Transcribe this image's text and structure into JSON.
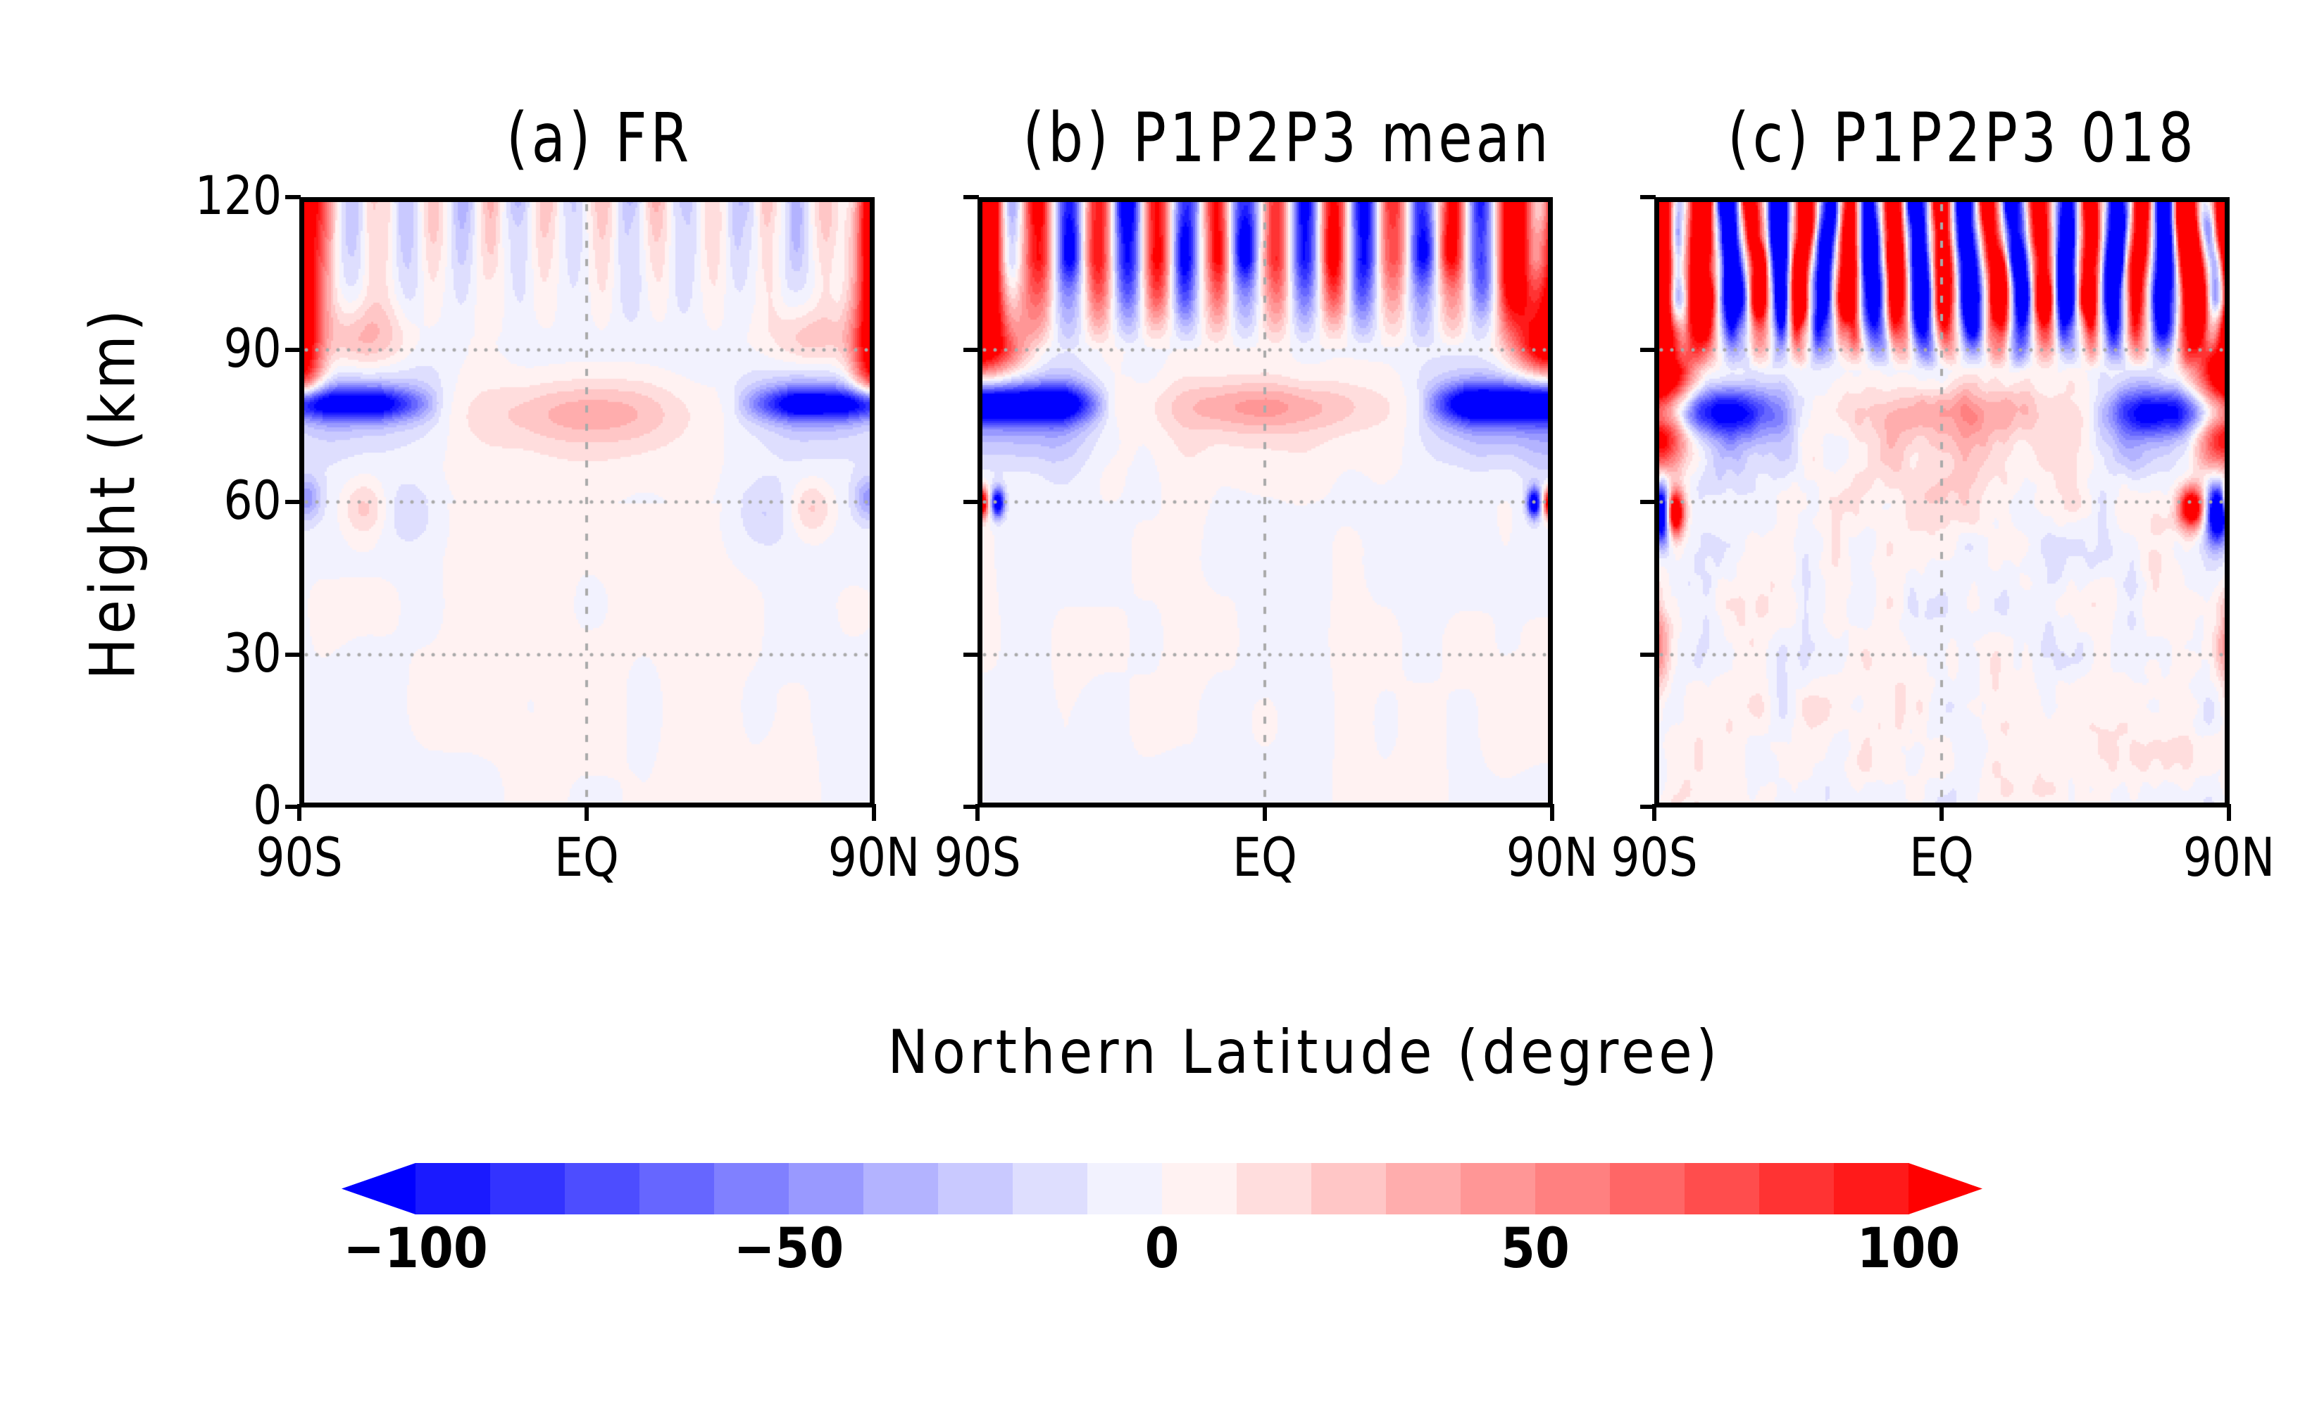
{
  "chart_data": [
    {
      "type": "heatmap",
      "panel_id": "a",
      "title": "(a) FR",
      "xlabel": "Northern Latitude (degree)",
      "ylabel": "Height (km)",
      "xlim": [
        -90,
        90
      ],
      "ylim": [
        0,
        120
      ],
      "xticks": [
        {
          "value": -90,
          "label": "90S"
        },
        {
          "value": 0,
          "label": "EQ"
        },
        {
          "value": 90,
          "label": "90N"
        }
      ],
      "yticks": [
        {
          "value": 0,
          "label": "0"
        },
        {
          "value": 30,
          "label": "30"
        },
        {
          "value": 60,
          "label": "60"
        },
        {
          "value": 90,
          "label": "90"
        },
        {
          "value": 120,
          "label": "120"
        }
      ],
      "grid": {
        "dotted_lines_at_height": [
          30,
          60,
          90
        ],
        "dotted_line_at_lat": [
          0
        ]
      },
      "features": [
        {
          "description": "strong positive (>100) near both poles above ~90 km",
          "value": ">100"
        },
        {
          "description": "strong negative band at ~80 km poleward of ~45 deg",
          "value": "-80 to -100"
        },
        {
          "description": "weak positive lens centered on equator at ~78 km",
          "value": "20 to 35"
        },
        {
          "description": "weak alternating vertical cells above 90 km",
          "value": "-30 to 30"
        },
        {
          "description": "near-zero field below 60 km",
          "value": "-10 to 10"
        }
      ]
    },
    {
      "type": "heatmap",
      "panel_id": "b",
      "title": "(b) P1P2P3 mean",
      "xlabel": "Northern Latitude (degree)",
      "ylabel": "Height (km)",
      "xlim": [
        -90,
        90
      ],
      "ylim": [
        0,
        120
      ],
      "xticks": [
        {
          "value": -90,
          "label": "90S"
        },
        {
          "value": 0,
          "label": "EQ"
        },
        {
          "value": 90,
          "label": "90N"
        }
      ],
      "yticks": [
        {
          "value": 0,
          "label": ""
        },
        {
          "value": 30,
          "label": ""
        },
        {
          "value": 60,
          "label": ""
        },
        {
          "value": 90,
          "label": ""
        },
        {
          "value": 120,
          "label": ""
        }
      ],
      "grid": {
        "dotted_lines_at_height": [
          30,
          60,
          90
        ],
        "dotted_line_at_lat": [
          0
        ]
      },
      "features": [
        {
          "description": "strong positive (>100) near both poles above ~90 km",
          "value": ">100"
        },
        {
          "description": "strong alternating vertical plumes above 95 km",
          "value": "-100 to 100"
        },
        {
          "description": "strong negative band at ~80 km poleward of ~45 deg",
          "value": "-80 to -100"
        },
        {
          "description": "weak positive lens centered on equator at ~78 km",
          "value": "20 to 35"
        },
        {
          "description": "small dipoles at ~60 km near both poles",
          "value": "-100 / 100"
        },
        {
          "description": "near-zero field below 55 km",
          "value": "-10 to 10"
        }
      ]
    },
    {
      "type": "heatmap",
      "panel_id": "c",
      "title": "(c) P1P2P3 018",
      "xlabel": "Northern Latitude (degree)",
      "ylabel": "Height (km)",
      "xlim": [
        -90,
        90
      ],
      "ylim": [
        0,
        120
      ],
      "xticks": [
        {
          "value": -90,
          "label": "90S"
        },
        {
          "value": 0,
          "label": "EQ"
        },
        {
          "value": 90,
          "label": "90N"
        }
      ],
      "yticks": [
        {
          "value": 0,
          "label": ""
        },
        {
          "value": 30,
          "label": ""
        },
        {
          "value": 60,
          "label": ""
        },
        {
          "value": 90,
          "label": ""
        },
        {
          "value": 120,
          "label": ""
        }
      ],
      "grid": {
        "dotted_lines_at_height": [
          30,
          60,
          90
        ],
        "dotted_line_at_lat": [
          0
        ]
      },
      "features": [
        {
          "description": "saturated positive (>100) at both polar edges from ~75 to 120 km",
          "value": ">100"
        },
        {
          "description": "noisy, saturated alternating plumes above 90 km",
          "value": "-100 to 100"
        },
        {
          "description": "negative band at ~78 km poleward of ~45 deg",
          "value": "-60 to -90"
        },
        {
          "description": "positive patch centered on equator at ~75 km",
          "value": "20 to 40"
        },
        {
          "description": "strong dipoles at ~55-62 km near both poles",
          "value": "-100 / 100"
        },
        {
          "description": "weak positive near poles at ~30 km",
          "value": "30 to 60"
        }
      ]
    }
  ],
  "axis_labels": {
    "y": "Height (km)",
    "x": "Northern Latitude (degree)"
  },
  "colorbar": {
    "min": -100,
    "max": 100,
    "interval": 10,
    "extend": "both",
    "tick_labels": [
      {
        "value": -100,
        "label": "−100"
      },
      {
        "value": -50,
        "label": "−50"
      },
      {
        "value": 0,
        "label": "0"
      },
      {
        "value": 50,
        "label": "50"
      },
      {
        "value": 100,
        "label": "100"
      }
    ],
    "colors": [
      "#0000ff",
      "#1a1aff",
      "#3333ff",
      "#4d4dff",
      "#6666ff",
      "#8080ff",
      "#9999ff",
      "#b3b3ff",
      "#c9c9ff",
      "#dedefe",
      "#f2f2fe",
      "#fff2f2",
      "#ffdddd",
      "#ffc6c6",
      "#ffadad",
      "#ff9696",
      "#ff8080",
      "#ff6666",
      "#ff4d4d",
      "#ff3333",
      "#ff1a1a",
      "#ff0000"
    ]
  },
  "grid_color": "#aaaaaa"
}
